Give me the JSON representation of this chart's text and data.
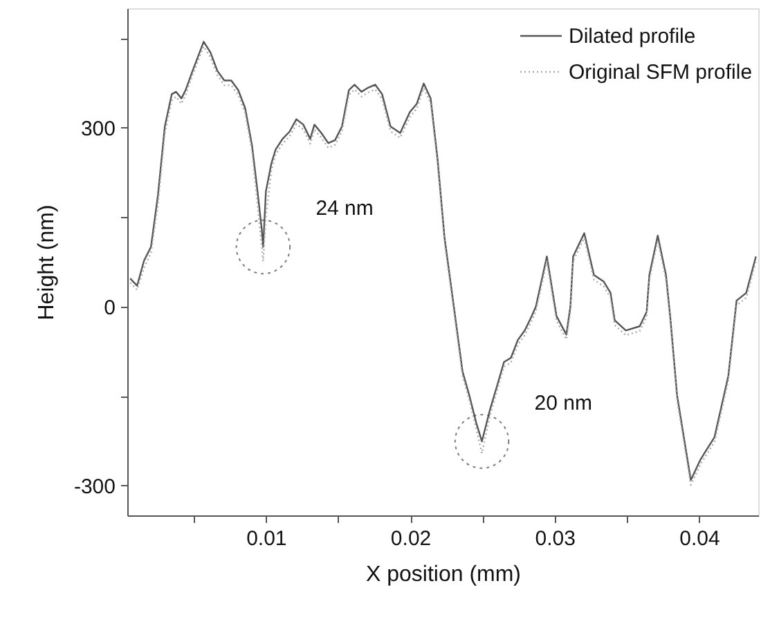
{
  "chart_data": {
    "type": "line",
    "xlabel": "X position (mm)",
    "ylabel": "Height (nm)",
    "xlim": [
      0.0004,
      0.0441
    ],
    "ylim": [
      -350,
      500
    ],
    "xticks": [
      {
        "value": 0.005,
        "label": null
      },
      0.01,
      {
        "value": 0.015,
        "label": null
      },
      0.02,
      {
        "value": 0.025,
        "label": null
      },
      0.03,
      {
        "value": 0.035,
        "label": null
      },
      0.04
    ],
    "yticks": [
      -300,
      {
        "value": -150,
        "label": null
      },
      0,
      {
        "value": 150,
        "label": null
      },
      300,
      {
        "value": 450,
        "label": null
      }
    ],
    "grid": false,
    "legend": "top right",
    "marker": "none",
    "x": [
      0.0006,
      0.00108,
      0.00156,
      0.00204,
      0.00252,
      0.003,
      0.00348,
      0.00377,
      0.00415,
      0.00444,
      0.00492,
      0.00569,
      0.00616,
      0.00664,
      0.00712,
      0.0076,
      0.00808,
      0.00856,
      0.00904,
      0.00942,
      0.00971,
      0.00981,
      0.01,
      0.01038,
      0.01067,
      0.01115,
      0.01163,
      0.01211,
      0.01259,
      0.01307,
      0.01336,
      0.01384,
      0.01432,
      0.01479,
      0.01527,
      0.01575,
      0.01614,
      0.01662,
      0.01709,
      0.01757,
      0.01805,
      0.01863,
      0.0193,
      0.01997,
      0.02045,
      0.02093,
      0.02141,
      0.02189,
      0.02237,
      0.02285,
      0.02362,
      0.02409,
      0.02457,
      0.02496,
      0.02553,
      0.02601,
      0.02649,
      0.02697,
      0.02745,
      0.02793,
      0.02841,
      0.0287,
      0.02946,
      0.03013,
      0.03081,
      0.03109,
      0.03128,
      0.03205,
      0.03272,
      0.03339,
      0.03387,
      0.03416,
      0.03493,
      0.03589,
      0.03637,
      0.03656,
      0.03714,
      0.03771,
      0.038,
      0.03848,
      0.03943,
      0.04011,
      0.04107,
      0.04203,
      0.0426,
      0.04327,
      0.04394
    ],
    "series": [
      {
        "name": "Dilated profile",
        "color": "#555555",
        "line_style": "solid",
        "values": [
          47,
          35,
          77,
          100,
          186,
          302,
          356,
          360,
          349,
          363,
          395,
          444,
          426,
          395,
          379,
          379,
          363,
          333,
          270,
          193,
          130,
          100,
          193,
          240,
          263,
          281,
          293,
          314,
          305,
          281,
          305,
          291,
          274,
          279,
          302,
          363,
          372,
          360,
          367,
          372,
          356,
          302,
          291,
          326,
          340,
          374,
          349,
          247,
          116,
          30,
          -109,
          -149,
          -195,
          -226,
          -172,
          -133,
          -93,
          -86,
          -56,
          -40,
          -16,
          0,
          84,
          -16,
          -47,
          0,
          84,
          123,
          53,
          42,
          23,
          -23,
          -40,
          -33,
          -9,
          53,
          119,
          53,
          -16,
          -149,
          -291,
          -256,
          -219,
          -116,
          10,
          23,
          84
        ]
      },
      {
        "name": "Original SFM profile",
        "color": "#aaaaaa",
        "line_style": "dotted",
        "values": [
          40,
          28,
          65,
          90,
          170,
          290,
          345,
          352,
          340,
          355,
          388,
          436,
          418,
          388,
          371,
          371,
          355,
          325,
          260,
          170,
          100,
          76,
          150,
          228,
          255,
          273,
          285,
          306,
          297,
          273,
          297,
          283,
          266,
          271,
          294,
          355,
          364,
          352,
          359,
          364,
          348,
          294,
          283,
          318,
          332,
          366,
          341,
          239,
          108,
          22,
          -117,
          -157,
          -205,
          -246,
          -182,
          -141,
          -101,
          -94,
          -64,
          -48,
          -24,
          -8,
          76,
          -24,
          -55,
          -8,
          76,
          115,
          45,
          34,
          15,
          -31,
          -48,
          -41,
          -17,
          45,
          111,
          45,
          -24,
          -157,
          -299,
          -264,
          -227,
          -124,
          2,
          15,
          76
        ]
      }
    ],
    "annotations": [
      {
        "text": "24 nm",
        "x": 0.00981,
        "y": 100
      },
      {
        "text": "20 nm",
        "x": 0.02496,
        "y": -226
      }
    ]
  }
}
